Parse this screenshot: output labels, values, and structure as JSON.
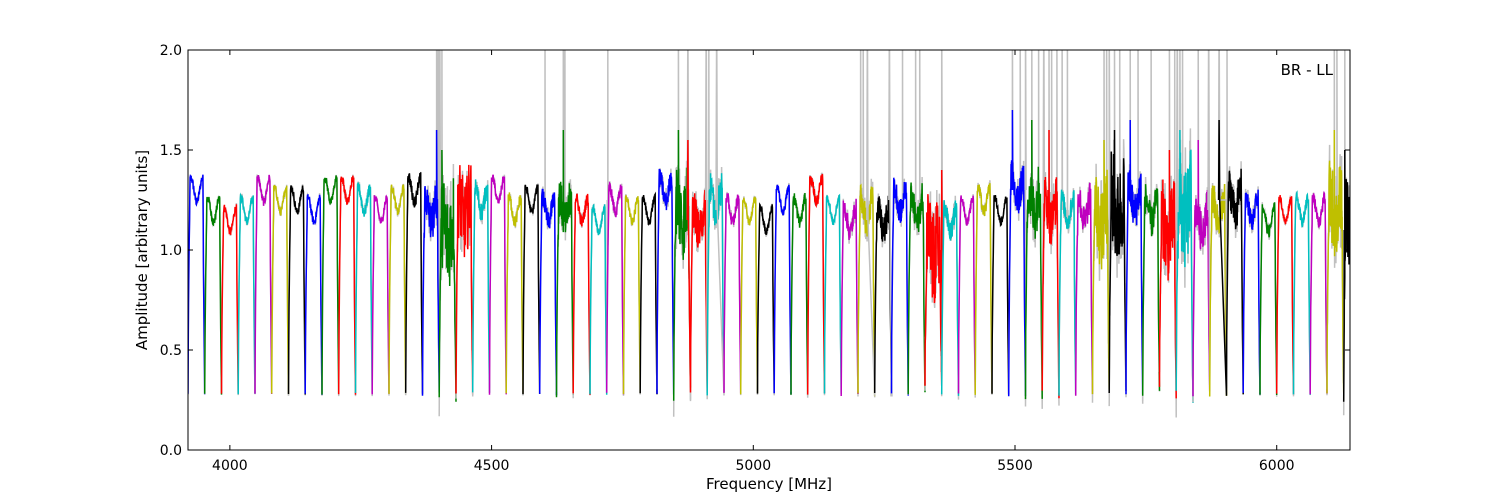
{
  "chart_data": {
    "type": "line",
    "annotation": "BR - LL",
    "xlabel": "Frequency [MHz]",
    "ylabel": "Amplitude [arbitrary units]",
    "xlim": [
      3920,
      6140
    ],
    "ylim": [
      0.0,
      2.0
    ],
    "xticks": [
      4000,
      4500,
      5000,
      5500,
      6000
    ],
    "yticks": [
      0.0,
      0.5,
      1.0,
      1.5,
      2.0
    ],
    "xtick_labels": [
      "4000",
      "4500",
      "5000",
      "5500",
      "6000"
    ],
    "ytick_labels": [
      "0.0",
      "0.5",
      "1.0",
      "1.5",
      "2.0"
    ],
    "grid": false,
    "background_series_color": "#c0c0c0",
    "colors": [
      "#0000ff",
      "#008000",
      "#ff0000",
      "#00bfbf",
      "#bf00bf",
      "#bfbf00",
      "#000000"
    ],
    "channel_width_mhz": 32,
    "channel_starts": [
      3920,
      3952,
      3984,
      4016,
      4048,
      4080,
      4112,
      4144,
      4176,
      4208,
      4240,
      4272,
      4304,
      4336,
      4368,
      4400,
      4432,
      4464,
      4496,
      4528,
      4560,
      4592,
      4624,
      4656,
      4688,
      4720,
      4752,
      4784,
      4816,
      4848,
      4880,
      4912,
      4944,
      4976,
      5008,
      5040,
      5072,
      5104,
      5136,
      5168,
      5200,
      5232,
      5264,
      5296,
      5328,
      5360,
      5392,
      5424,
      5456,
      5488,
      5520,
      5552,
      5584,
      5616,
      5648,
      5680,
      5712,
      5744,
      5776,
      5808,
      5840,
      5872,
      5904,
      5936,
      5968,
      6000,
      6032,
      6064,
      6096,
      6128
    ],
    "channel_levels": [
      1.3,
      1.2,
      1.15,
      1.2,
      1.3,
      1.25,
      1.25,
      1.2,
      1.3,
      1.3,
      1.25,
      1.2,
      1.25,
      1.3,
      1.2,
      1.1,
      1.2,
      1.25,
      1.3,
      1.2,
      1.25,
      1.2,
      1.2,
      1.2,
      1.15,
      1.25,
      1.2,
      1.2,
      1.3,
      1.2,
      1.15,
      1.25,
      1.2,
      1.2,
      1.15,
      1.25,
      1.2,
      1.3,
      1.2,
      1.15,
      1.2,
      1.15,
      1.25,
      1.2,
      1.0,
      1.15,
      1.2,
      1.25,
      1.2,
      1.3,
      1.25,
      1.2,
      1.2,
      1.2,
      1.15,
      1.2,
      1.25,
      1.2,
      1.1,
      1.2,
      1.15,
      1.2,
      1.25,
      1.2,
      1.15,
      1.2,
      1.2,
      1.2,
      1.2,
      1.1
    ],
    "channel_noise": [
      0.02,
      0.02,
      0.02,
      0.02,
      0.02,
      0.02,
      0.02,
      0.02,
      0.02,
      0.02,
      0.03,
      0.02,
      0.02,
      0.03,
      0.1,
      0.25,
      0.2,
      0.05,
      0.02,
      0.03,
      0.02,
      0.05,
      0.1,
      0.03,
      0.02,
      0.03,
      0.02,
      0.02,
      0.05,
      0.2,
      0.1,
      0.08,
      0.03,
      0.02,
      0.02,
      0.02,
      0.03,
      0.03,
      0.02,
      0.05,
      0.08,
      0.08,
      0.06,
      0.08,
      0.25,
      0.05,
      0.02,
      0.03,
      0.02,
      0.1,
      0.15,
      0.12,
      0.05,
      0.08,
      0.2,
      0.25,
      0.1,
      0.08,
      0.2,
      0.25,
      0.1,
      0.08,
      0.1,
      0.05,
      0.03,
      0.02,
      0.03,
      0.03,
      0.2,
      0.2
    ],
    "channel_spikes": [
      [],
      [],
      [],
      [],
      [],
      [],
      [],
      [],
      [],
      [],
      [],
      [],
      [],
      [],
      [
        4395,
        4398,
        4401
      ],
      [
        4405
      ],
      [],
      [],
      [],
      [],
      [],
      [
        4602
      ],
      [
        4637,
        4640
      ],
      [],
      [],
      [
        4722
      ],
      [],
      [],
      [],
      [
        4857
      ],
      [
        4875
      ],
      [
        4910,
        4915
      ],
      [
        4930
      ],
      [],
      [],
      [],
      [],
      [],
      [],
      [],
      [
        5205,
        5210
      ],
      [
        5218
      ],
      [
        5260,
        5285
      ],
      [
        5310,
        5318
      ],
      [
        5360
      ],
      [],
      [],
      [],
      [],
      [
        5495,
        5510,
        5520
      ],
      [
        5532,
        5545,
        5555
      ],
      [
        5565,
        5570,
        5580
      ],
      [
        5590,
        5600
      ],
      [],
      [
        5670,
        5675,
        5680
      ],
      [
        5690,
        5700
      ],
      [
        5720,
        5735
      ],
      [
        5760
      ],
      [
        5795,
        5805,
        5810
      ],
      [
        5815,
        5820
      ],
      [
        5850
      ],
      [
        5870
      ],
      [
        5890,
        5905
      ],
      [],
      [],
      [],
      [],
      [],
      [
        6110,
        6115
      ],
      [
        6130
      ]
    ]
  }
}
